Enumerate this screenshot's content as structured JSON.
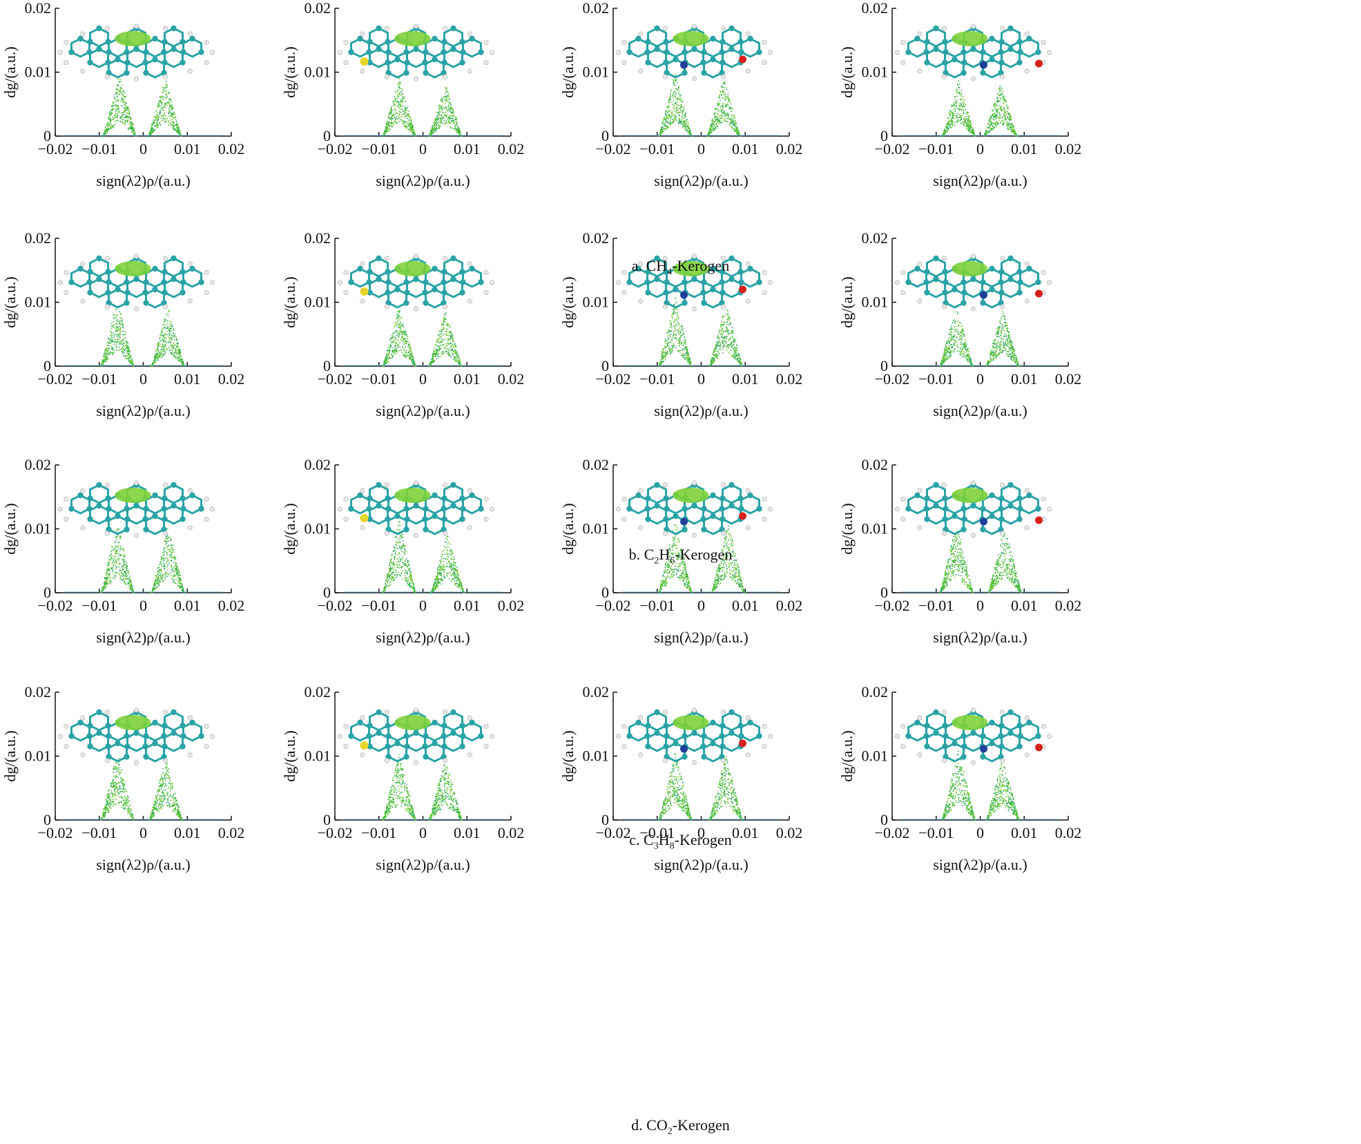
{
  "figure": {
    "rows": [
      {
        "prefix": "a. CH",
        "sub": "4",
        "suffix": "-Kerogen"
      },
      {
        "prefix": "b. C",
        "sub": "2",
        "mid": "H",
        "sub2": "6",
        "suffix": "-Kerogen"
      },
      {
        "prefix": "c. C",
        "sub": "3",
        "mid": "H",
        "sub2": "8",
        "suffix": "-Kerogen"
      },
      {
        "prefix": "d. CO",
        "sub": "2",
        "suffix": "-Kerogen"
      }
    ],
    "ylabel": "dg/(a.u.)",
    "xlabel": "sign(λ2)ρ/(a.u.)",
    "colors": {
      "carbon": "#2aa3a6",
      "hydrogen": "#e8e8e8",
      "sulfur": "#e6d628",
      "nitrogen": "#1f3f9a",
      "oxygen": "#d6201c",
      "isosurface": "#7ed23a",
      "points": "#3fb43a"
    }
  },
  "chart_data": [
    {
      "type": "scatter",
      "panel": "a1",
      "xlim": [
        -0.02,
        0.02
      ],
      "ylim": [
        0,
        0.02
      ],
      "xticks": [
        "-0.02",
        "-0.01",
        "0",
        "0.01",
        "0.02"
      ],
      "yticks": [
        "0",
        "0.01",
        "0.02"
      ],
      "peaks": {
        "neg_x": -0.0055,
        "neg_y": 0.0098,
        "pos_x": 0.0048,
        "pos_y": 0.0092
      }
    },
    {
      "type": "scatter",
      "panel": "a2",
      "xlim": [
        -0.02,
        0.02
      ],
      "ylim": [
        0,
        0.02
      ],
      "xticks": [
        "-0.02",
        "-0.01",
        "0",
        "0.01",
        "0.02"
      ],
      "yticks": [
        "0",
        "0.01",
        "0.02"
      ],
      "peaks": {
        "neg_x": -0.0055,
        "neg_y": 0.0093,
        "pos_x": 0.005,
        "pos_y": 0.0082
      }
    },
    {
      "type": "scatter",
      "panel": "a3",
      "xlim": [
        -0.02,
        0.02
      ],
      "ylim": [
        0,
        0.02
      ],
      "xticks": [
        "-0.02",
        "-0.01",
        "0",
        "0.01",
        "0.02"
      ],
      "yticks": [
        "0",
        "0.01",
        "0.02"
      ],
      "peaks": {
        "neg_x": -0.006,
        "neg_y": 0.01,
        "pos_x": 0.005,
        "pos_y": 0.0092
      }
    },
    {
      "type": "scatter",
      "panel": "a4",
      "xlim": [
        -0.02,
        0.02
      ],
      "ylim": [
        0,
        0.02
      ],
      "xticks": [
        "-0.02",
        "-0.01",
        "0",
        "0.01",
        "0.02"
      ],
      "yticks": [
        "0",
        "0.01",
        "0.02"
      ],
      "peaks": {
        "neg_x": -0.005,
        "neg_y": 0.0088,
        "pos_x": 0.0045,
        "pos_y": 0.0084
      }
    },
    {
      "type": "scatter",
      "panel": "b1",
      "xlim": [
        -0.02,
        0.02
      ],
      "ylim": [
        0,
        0.02
      ],
      "xticks": [
        "-0.02",
        "-0.01",
        "0",
        "0.01",
        "0.02"
      ],
      "yticks": [
        "0",
        "0.01",
        "0.02"
      ],
      "peaks": {
        "neg_x": -0.006,
        "neg_y": 0.0105,
        "pos_x": 0.0055,
        "pos_y": 0.0095
      }
    },
    {
      "type": "scatter",
      "panel": "b2",
      "xlim": [
        -0.02,
        0.02
      ],
      "ylim": [
        0,
        0.02
      ],
      "xticks": [
        "-0.02",
        "-0.01",
        "0",
        "0.01",
        "0.02"
      ],
      "yticks": [
        "0",
        "0.01",
        "0.02"
      ],
      "peaks": {
        "neg_x": -0.0055,
        "neg_y": 0.0095,
        "pos_x": 0.005,
        "pos_y": 0.0088
      }
    },
    {
      "type": "scatter",
      "panel": "b3",
      "xlim": [
        -0.02,
        0.02
      ],
      "ylim": [
        0,
        0.02
      ],
      "xticks": [
        "-0.02",
        "-0.01",
        "0",
        "0.01",
        "0.02"
      ],
      "yticks": [
        "0",
        "0.01",
        "0.02"
      ],
      "peaks": {
        "neg_x": -0.006,
        "neg_y": 0.011,
        "pos_x": 0.0055,
        "pos_y": 0.01
      }
    },
    {
      "type": "scatter",
      "panel": "b4",
      "xlim": [
        -0.02,
        0.02
      ],
      "ylim": [
        0,
        0.02
      ],
      "xticks": [
        "-0.02",
        "-0.01",
        "0",
        "0.01",
        "0.02"
      ],
      "yticks": [
        "0",
        "0.01",
        "0.02"
      ],
      "peaks": {
        "neg_x": -0.0055,
        "neg_y": 0.0098,
        "pos_x": 0.005,
        "pos_y": 0.009
      }
    },
    {
      "type": "scatter",
      "panel": "c1",
      "xlim": [
        -0.02,
        0.02
      ],
      "ylim": [
        0,
        0.02
      ],
      "xticks": [
        "-0.02",
        "-0.01",
        "0",
        "0.01",
        "0.02"
      ],
      "yticks": [
        "0",
        "0.01",
        "0.02"
      ],
      "peaks": {
        "neg_x": -0.006,
        "neg_y": 0.011,
        "pos_x": 0.0055,
        "pos_y": 0.0105
      }
    },
    {
      "type": "scatter",
      "panel": "c2",
      "xlim": [
        -0.02,
        0.02
      ],
      "ylim": [
        0,
        0.02
      ],
      "xticks": [
        "-0.02",
        "-0.01",
        "0",
        "0.01",
        "0.02"
      ],
      "yticks": [
        "0",
        "0.01",
        "0.02"
      ],
      "peaks": {
        "neg_x": -0.0055,
        "neg_y": 0.0115,
        "pos_x": 0.0055,
        "pos_y": 0.0095
      }
    },
    {
      "type": "scatter",
      "panel": "c3",
      "xlim": [
        -0.02,
        0.02
      ],
      "ylim": [
        0,
        0.02
      ],
      "xticks": [
        "-0.02",
        "-0.01",
        "0",
        "0.01",
        "0.02"
      ],
      "yticks": [
        "0",
        "0.01",
        "0.02"
      ],
      "peaks": {
        "neg_x": -0.006,
        "neg_y": 0.0115,
        "pos_x": 0.006,
        "pos_y": 0.0112
      }
    },
    {
      "type": "scatter",
      "panel": "c4",
      "xlim": [
        -0.02,
        0.02
      ],
      "ylim": [
        0,
        0.02
      ],
      "xticks": [
        "-0.02",
        "-0.01",
        "0",
        "0.01",
        "0.02"
      ],
      "yticks": [
        "0",
        "0.01",
        "0.02"
      ],
      "peaks": {
        "neg_x": -0.0055,
        "neg_y": 0.011,
        "pos_x": 0.0055,
        "pos_y": 0.0105
      }
    },
    {
      "type": "scatter",
      "panel": "d1",
      "xlim": [
        -0.02,
        0.02
      ],
      "ylim": [
        0,
        0.02
      ],
      "xticks": [
        "-0.02",
        "-0.01",
        "0",
        "0.01",
        "0.02"
      ],
      "yticks": [
        "0",
        "0.01",
        "0.02"
      ],
      "peaks": {
        "neg_x": -0.006,
        "neg_y": 0.0108,
        "pos_x": 0.005,
        "pos_y": 0.0098
      }
    },
    {
      "type": "scatter",
      "panel": "d2",
      "xlim": [
        -0.02,
        0.02
      ],
      "ylim": [
        0,
        0.02
      ],
      "xticks": [
        "-0.02",
        "-0.01",
        "0",
        "0.01",
        "0.02"
      ],
      "yticks": [
        "0",
        "0.01",
        "0.02"
      ],
      "peaks": {
        "neg_x": -0.0055,
        "neg_y": 0.0105,
        "pos_x": 0.005,
        "pos_y": 0.0098
      }
    },
    {
      "type": "scatter",
      "panel": "d3",
      "xlim": [
        -0.02,
        0.02
      ],
      "ylim": [
        0,
        0.02
      ],
      "xticks": [
        "-0.02",
        "-0.01",
        "0",
        "0.01",
        "0.02"
      ],
      "yticks": [
        "0",
        "0.01",
        "0.02"
      ],
      "peaks": {
        "neg_x": -0.006,
        "neg_y": 0.011,
        "pos_x": 0.0055,
        "pos_y": 0.0105
      }
    },
    {
      "type": "scatter",
      "panel": "d4",
      "xlim": [
        -0.02,
        0.02
      ],
      "ylim": [
        0,
        0.02
      ],
      "xticks": [
        "-0.02",
        "-0.01",
        "0",
        "0.01",
        "0.02"
      ],
      "yticks": [
        "0",
        "0.01",
        "0.02"
      ],
      "peaks": {
        "neg_x": -0.005,
        "neg_y": 0.0112,
        "pos_x": 0.005,
        "pos_y": 0.0098
      }
    }
  ]
}
